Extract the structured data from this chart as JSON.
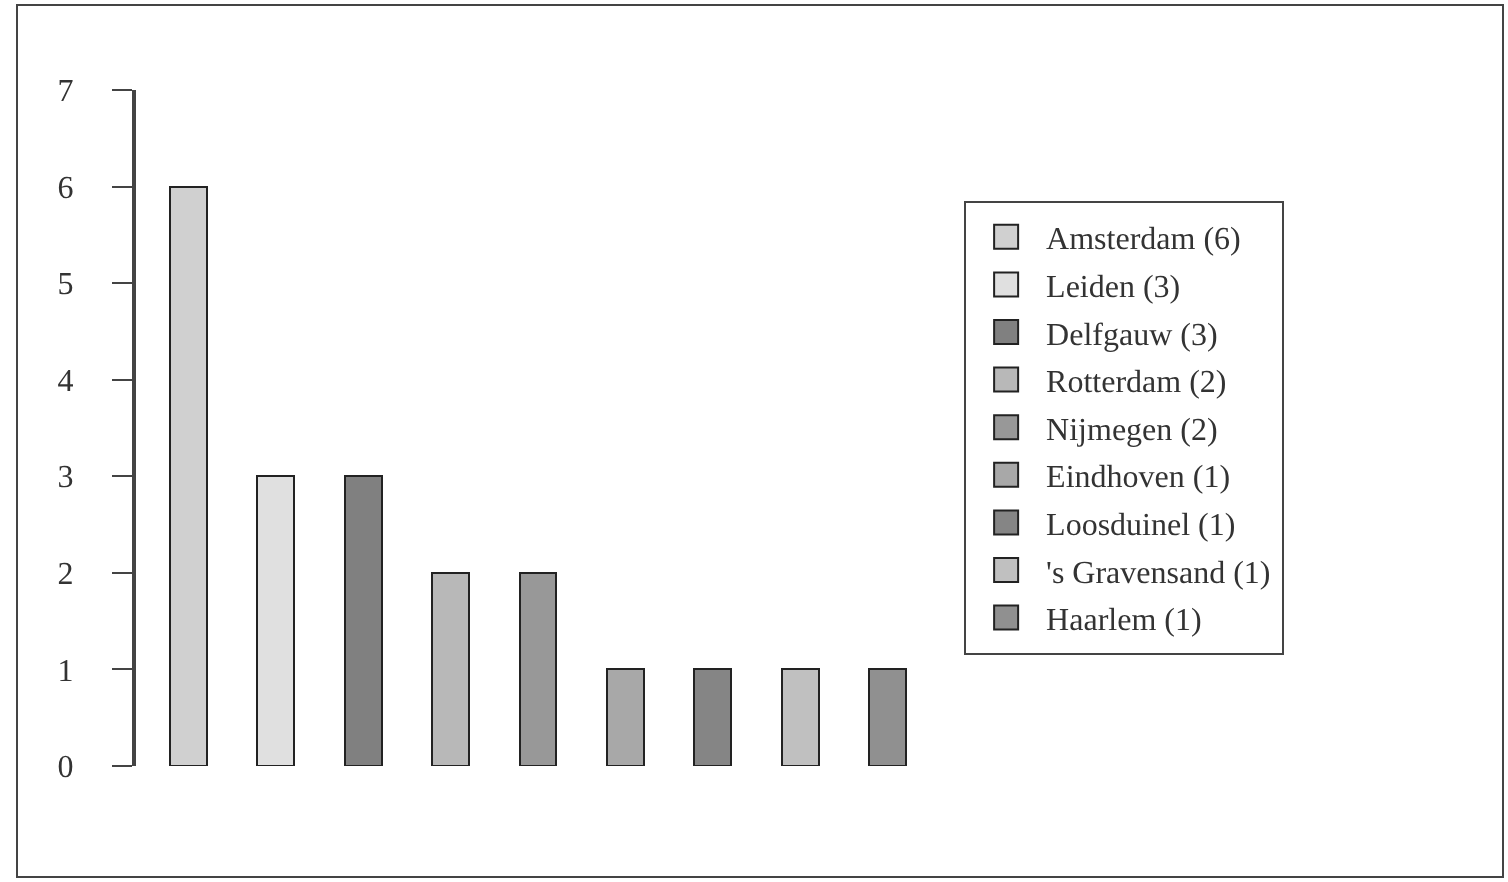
{
  "chart_data": {
    "type": "bar",
    "stacked": true,
    "categories": [
      null,
      null,
      null,
      null,
      null,
      null,
      null,
      null,
      null
    ],
    "series": [
      {
        "name": "Amsterdam (6)",
        "color": "#d0d0d0",
        "values": [
          6,
          null,
          null,
          null,
          null,
          null,
          null,
          null,
          null
        ]
      },
      {
        "name": "Leiden (3)",
        "color": "#e0e0e0",
        "values": [
          null,
          3,
          null,
          null,
          null,
          null,
          null,
          null,
          null
        ]
      },
      {
        "name": "Delfgauw (3)",
        "color": "#808080",
        "values": [
          null,
          null,
          3,
          null,
          null,
          null,
          null,
          null,
          null
        ]
      },
      {
        "name": "Rotterdam (2)",
        "color": "#b8b8b8",
        "values": [
          null,
          null,
          null,
          2,
          null,
          null,
          null,
          null,
          null
        ]
      },
      {
        "name": "Nijmegen (2)",
        "color": "#989898",
        "values": [
          null,
          null,
          null,
          null,
          2,
          null,
          null,
          null,
          null
        ]
      },
      {
        "name": "Eindhoven (1)",
        "color": "#a8a8a8",
        "values": [
          null,
          null,
          null,
          null,
          null,
          1,
          null,
          null,
          null
        ]
      },
      {
        "name": "Loosduinel (1)",
        "color": "#858585",
        "values": [
          null,
          null,
          null,
          null,
          null,
          null,
          1,
          null,
          null
        ]
      },
      {
        "name": "'s Gravensand (1)",
        "color": "#c0c0c0",
        "values": [
          null,
          null,
          null,
          null,
          null,
          null,
          null,
          1,
          null
        ]
      },
      {
        "name": "Haarlem (1)",
        "color": "#909090",
        "values": [
          null,
          null,
          null,
          null,
          null,
          null,
          null,
          null,
          1
        ]
      }
    ],
    "ylim": [
      0,
      7
    ],
    "yticks": [
      0,
      1,
      2,
      3,
      4,
      5,
      6,
      7
    ],
    "grid": false,
    "legend": "right"
  }
}
